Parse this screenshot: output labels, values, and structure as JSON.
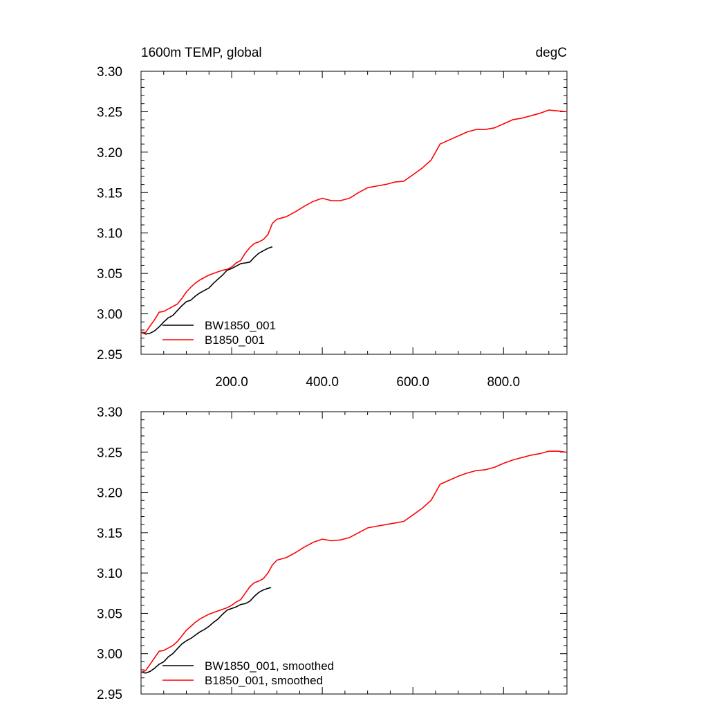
{
  "chart_data": [
    {
      "type": "line",
      "title_left": "1600m TEMP, global",
      "title_right": "degC",
      "xlim": [
        0,
        940
      ],
      "ylim": [
        2.95,
        3.3
      ],
      "yticks": [
        "3.30",
        "3.25",
        "3.20",
        "3.15",
        "3.10",
        "3.05",
        "3.00",
        "2.95"
      ],
      "xticks": [
        "200.0",
        "400.0",
        "600.0",
        "800.0"
      ],
      "legend_position": "bottom-left",
      "series": [
        {
          "name": "BW1850_001",
          "color": "#000000",
          "x": [
            1,
            10,
            20,
            30,
            40,
            50,
            60,
            70,
            80,
            90,
            100,
            110,
            120,
            130,
            140,
            150,
            160,
            170,
            180,
            190,
            200,
            210,
            220,
            230,
            240,
            250,
            260,
            270,
            280,
            290
          ],
          "y": [
            2.977,
            2.975,
            2.976,
            2.979,
            2.984,
            2.99,
            2.995,
            2.998,
            3.004,
            3.01,
            3.015,
            3.017,
            3.022,
            3.026,
            3.029,
            3.032,
            3.038,
            3.043,
            3.048,
            3.054,
            3.056,
            3.059,
            3.062,
            3.063,
            3.064,
            3.07,
            3.075,
            3.078,
            3.081,
            3.083
          ]
        },
        {
          "name": "B1850_001",
          "color": "#ff0000",
          "x": [
            1,
            10,
            20,
            30,
            40,
            50,
            60,
            70,
            80,
            90,
            100,
            110,
            120,
            130,
            140,
            150,
            160,
            170,
            180,
            190,
            200,
            210,
            220,
            230,
            240,
            250,
            260,
            270,
            280,
            290,
            300,
            320,
            340,
            360,
            380,
            400,
            420,
            440,
            460,
            480,
            500,
            520,
            540,
            560,
            580,
            600,
            620,
            640,
            650,
            660,
            680,
            700,
            720,
            740,
            760,
            780,
            800,
            820,
            840,
            860,
            880,
            900,
            920,
            940
          ],
          "y": [
            2.977,
            2.977,
            2.985,
            2.993,
            3.002,
            3.003,
            3.006,
            3.009,
            3.012,
            3.019,
            3.027,
            3.033,
            3.038,
            3.042,
            3.045,
            3.048,
            3.05,
            3.052,
            3.054,
            3.055,
            3.058,
            3.063,
            3.066,
            3.075,
            3.082,
            3.087,
            3.089,
            3.092,
            3.098,
            3.112,
            3.117,
            3.12,
            3.126,
            3.133,
            3.139,
            3.143,
            3.14,
            3.14,
            3.143,
            3.15,
            3.156,
            3.158,
            3.16,
            3.163,
            3.164,
            3.172,
            3.18,
            3.19,
            3.2,
            3.21,
            3.215,
            3.22,
            3.225,
            3.228,
            3.228,
            3.23,
            3.235,
            3.24,
            3.242,
            3.245,
            3.248,
            3.252,
            3.251,
            3.25
          ]
        }
      ]
    },
    {
      "type": "line",
      "xlim": [
        0,
        940
      ],
      "ylim": [
        2.95,
        3.3
      ],
      "yticks": [
        "3.30",
        "3.25",
        "3.20",
        "3.15",
        "3.10",
        "3.05",
        "3.00",
        "2.95"
      ],
      "legend_position": "bottom-left",
      "series": [
        {
          "name": "BW1850_001, smoothed",
          "color": "#000000",
          "x": [
            1,
            10,
            20,
            30,
            40,
            50,
            60,
            70,
            80,
            90,
            100,
            110,
            120,
            130,
            140,
            150,
            160,
            170,
            180,
            190,
            200,
            210,
            220,
            230,
            240,
            250,
            260,
            270,
            280,
            287
          ],
          "y": [
            2.977,
            2.976,
            2.978,
            2.982,
            2.987,
            2.99,
            2.996,
            3.0,
            3.006,
            3.012,
            3.016,
            3.019,
            3.023,
            3.027,
            3.03,
            3.034,
            3.039,
            3.043,
            3.049,
            3.054,
            3.056,
            3.058,
            3.061,
            3.062,
            3.065,
            3.071,
            3.076,
            3.079,
            3.081,
            3.082
          ]
        },
        {
          "name": "B1850_001, smoothed",
          "color": "#ff0000",
          "x": [
            1,
            10,
            20,
            30,
            40,
            50,
            60,
            70,
            80,
            90,
            100,
            110,
            120,
            130,
            140,
            150,
            160,
            170,
            180,
            190,
            200,
            210,
            220,
            230,
            240,
            250,
            260,
            270,
            280,
            290,
            300,
            320,
            340,
            360,
            380,
            400,
            420,
            440,
            460,
            480,
            500,
            520,
            540,
            560,
            580,
            600,
            620,
            640,
            650,
            660,
            680,
            700,
            720,
            740,
            760,
            780,
            800,
            820,
            840,
            860,
            880,
            900,
            920,
            936
          ],
          "y": [
            2.977,
            2.979,
            2.987,
            2.995,
            3.003,
            3.004,
            3.007,
            3.01,
            3.015,
            3.022,
            3.029,
            3.034,
            3.039,
            3.043,
            3.046,
            3.049,
            3.051,
            3.053,
            3.055,
            3.057,
            3.06,
            3.064,
            3.067,
            3.075,
            3.083,
            3.088,
            3.09,
            3.093,
            3.1,
            3.11,
            3.116,
            3.119,
            3.125,
            3.132,
            3.138,
            3.142,
            3.14,
            3.141,
            3.144,
            3.15,
            3.156,
            3.158,
            3.16,
            3.162,
            3.164,
            3.172,
            3.18,
            3.19,
            3.2,
            3.21,
            3.215,
            3.22,
            3.224,
            3.227,
            3.228,
            3.231,
            3.236,
            3.24,
            3.243,
            3.246,
            3.248,
            3.251,
            3.251,
            3.25
          ]
        }
      ]
    }
  ]
}
